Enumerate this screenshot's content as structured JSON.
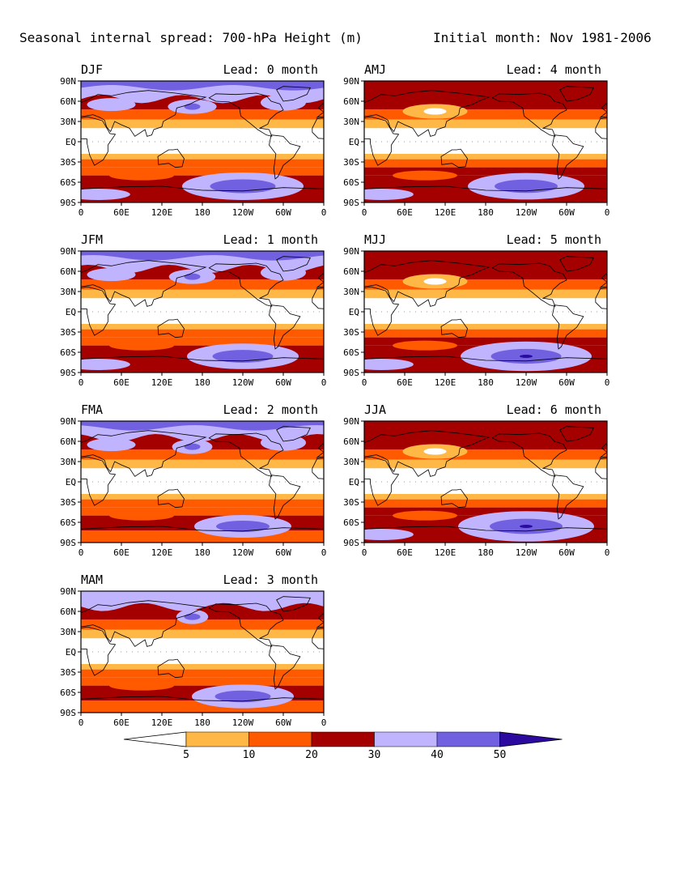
{
  "title_left": "Seasonal internal spread: 700-hPa Height (m)",
  "title_right": "Initial month: Nov 1981-2006",
  "panels": [
    {
      "season": "DJF",
      "lead": "Lead: 0 month",
      "northern_blue": 0.85,
      "southern_blue": 0.75,
      "southern_dark": 0.0,
      "arctic_band": 0.9
    },
    {
      "season": "JFM",
      "lead": "Lead: 1 month",
      "northern_blue": 0.8,
      "southern_blue": 0.65,
      "southern_dark": 0.0,
      "arctic_band": 0.8
    },
    {
      "season": "FMA",
      "lead": "Lead: 2 month",
      "northern_blue": 0.65,
      "southern_blue": 0.5,
      "southern_dark": 0.0,
      "arctic_band": 0.7
    },
    {
      "season": "MAM",
      "lead": "Lead: 3 month",
      "northern_blue": 0.45,
      "southern_blue": 0.55,
      "southern_dark": 0.3,
      "arctic_band": 0.0
    },
    {
      "season": "AMJ",
      "lead": "Lead: 4 month",
      "northern_blue": 0.15,
      "southern_blue": 0.7,
      "southern_dark": 0.6,
      "arctic_band": 0.0
    },
    {
      "season": "MJJ",
      "lead": "Lead: 5 month",
      "northern_blue": 0.0,
      "southern_blue": 0.85,
      "southern_dark": 0.8,
      "arctic_band": 0.0
    },
    {
      "season": "JJA",
      "lead": "Lead: 6 month",
      "northern_blue": 0.0,
      "southern_blue": 0.9,
      "southern_dark": 0.8,
      "arctic_band": 0.0
    }
  ],
  "lat_labels": [
    "90N",
    "60N",
    "30N",
    "EQ",
    "30S",
    "60S",
    "90S"
  ],
  "lon_labels": [
    "0",
    "60E",
    "120E",
    "180",
    "120W",
    "60W",
    "0"
  ],
  "colorbar": {
    "levels": [
      "5",
      "10",
      "20",
      "30",
      "40",
      "50"
    ],
    "colors": [
      "#ffffff",
      "#ffb846",
      "#ff5a00",
      "#a50000",
      "#c0b4ff",
      "#7160e0",
      "#2c0aa0"
    ]
  }
}
